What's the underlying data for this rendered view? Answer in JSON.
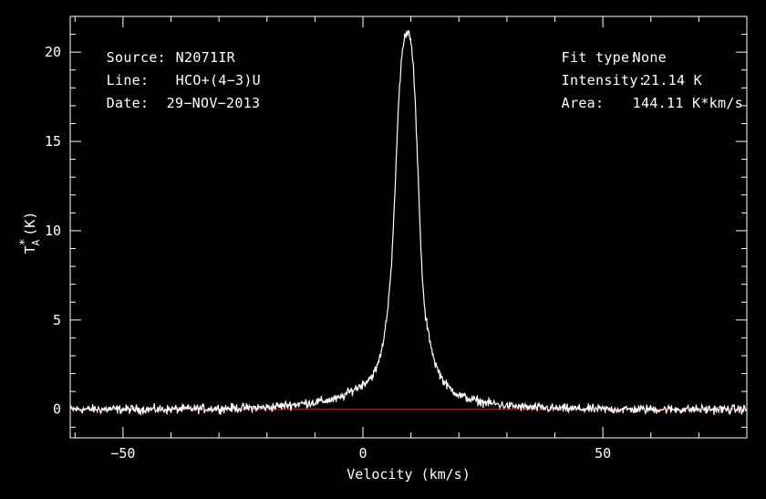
{
  "header": {
    "source_label": "Source:",
    "source_value": "N2071IR",
    "line_label": "Line:",
    "line_value": "HCO+(4−3)U",
    "date_label": "Date:",
    "date_value": "29−NOV−2013",
    "fit_label": "Fit type:",
    "fit_value": "None",
    "intensity_label": "Intensity:",
    "intensity_value": "21.14 K",
    "area_label": "Area:",
    "area_value": "144.11 K*km/s"
  },
  "chart_data": {
    "type": "line",
    "title": "",
    "xlabel": "Velocity (km/s)",
    "ylabel": "T*A (K)",
    "ylabel_parts": {
      "main": "T",
      "sup": "*",
      "sub": "A",
      "unit": "(K)"
    },
    "xlim": [
      -61,
      80
    ],
    "ylim": [
      -1.6,
      22
    ],
    "x_ticks": [
      -50,
      0,
      50
    ],
    "x_tick_labels": [
      "−50",
      "0",
      "50"
    ],
    "y_ticks": [
      0,
      5,
      10,
      15,
      20
    ],
    "y_tick_labels": [
      "0",
      "5",
      "10",
      "15",
      "20"
    ],
    "grid": false,
    "colors": {
      "background": "#000000",
      "trace": "#ffffff",
      "baseline": "#ff0000",
      "axes": "#ffffff"
    },
    "baseline_y": 0,
    "series": [
      {
        "x": [
          -61,
          -40,
          -20,
          -10,
          -5,
          -2,
          0,
          2,
          3,
          4,
          5,
          6,
          6.5,
          7,
          7.5,
          8,
          8.5,
          9,
          9.4,
          9.6,
          10,
          10.5,
          11,
          11.5,
          12,
          12.5,
          13,
          14,
          15,
          16,
          17,
          18,
          20,
          22,
          25,
          30,
          35,
          40,
          50,
          60,
          80
        ],
        "values": [
          0,
          0,
          0.1,
          0.4,
          0.6,
          1.1,
          1.4,
          1.9,
          2.4,
          3.4,
          5.2,
          8.3,
          11,
          14.5,
          17.5,
          19.5,
          20.6,
          21.1,
          21.14,
          21.1,
          20.8,
          19.2,
          16.5,
          13,
          9.5,
          6.8,
          5.2,
          3.8,
          2.6,
          2.0,
          1.5,
          1.2,
          0.8,
          0.6,
          0.4,
          0.2,
          0.1,
          0.05,
          0,
          0,
          0
        ]
      }
    ]
  }
}
